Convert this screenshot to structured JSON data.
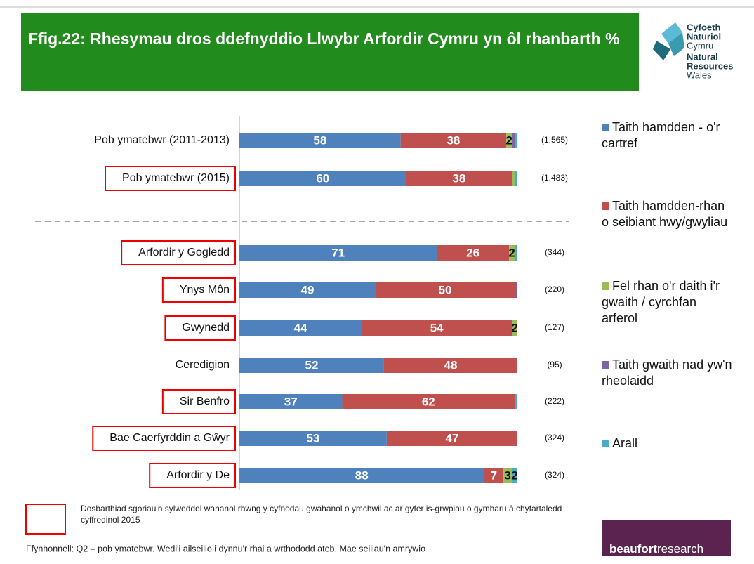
{
  "chart_data": {
    "type": "stacked_barh",
    "title": "Ffig.22: Rhesymau dros ddefnyddio Llwybr Arfordir Cymru yn ôl rhanbarth %",
    "categories": [
      "Pob ymatebwr (2011-2013)",
      "Pob ymatebwr (2015)",
      "Arfordir y Gogledd",
      "Ynys Môn",
      "Gwynedd",
      "Ceredigion",
      "Sir Benfro",
      "Bae Caerfyrddin a Gŵyr",
      "Arfordir y De"
    ],
    "highlight": [
      false,
      true,
      true,
      true,
      true,
      false,
      true,
      true,
      true
    ],
    "sample_sizes": [
      "(1,565)",
      "(1,483)",
      "(344)",
      "(220)",
      "(127)",
      "(95)",
      "(222)",
      "(324)",
      "(324)"
    ],
    "xlim": [
      0,
      100
    ],
    "series": [
      {
        "name": "Taith hamdden - o'r cartref",
        "color": "#4f81bd",
        "values": [
          58,
          60,
          71,
          49,
          44,
          52,
          37,
          53,
          88
        ]
      },
      {
        "name": "Taith hamdden-rhan o seibiant hwy/gwyliau",
        "color": "#c0504d",
        "values": [
          38,
          38,
          26,
          50,
          54,
          48,
          62,
          47,
          7
        ]
      },
      {
        "name": "Fel rhan o'r daith i'r gwaith / cyrchfan arferol",
        "color": "#9bbb59",
        "values": [
          2,
          1,
          2,
          0,
          2,
          0,
          0,
          0,
          3
        ],
        "value_labels": [
          "2",
          null,
          "2",
          null,
          "2",
          null,
          null,
          null,
          "3"
        ]
      },
      {
        "name": "Taith gwaith nad yw'n rheolaidd",
        "color": "#8064a2",
        "values": [
          1,
          0,
          0,
          1,
          0,
          0,
          0,
          0,
          0
        ],
        "value_labels": [
          null,
          null,
          null,
          null,
          null,
          null,
          null,
          null,
          null
        ]
      },
      {
        "name": "Arall",
        "color": "#4bacc6",
        "values": [
          1,
          1,
          1,
          0,
          0,
          0,
          1,
          0,
          2
        ],
        "value_labels": [
          null,
          null,
          null,
          null,
          null,
          null,
          null,
          null,
          "2"
        ]
      }
    ],
    "note": "Dosbarthiad sgoriau'n sylweddol wahanol rhwng y cyfnodau gwahanol o ymchwil ac ar gyfer is-grwpiau o gymharu â chyfartaledd cyffredinol 2015",
    "source": "Ffynhonnell: Q2 – pob ymatebwr. Wedi'i ailseilio i dynnu'r rhai a wrthododd ateb. Mae seiliau'n amrywio",
    "logo": [
      "Cyfoeth",
      "Naturiol",
      "Cymru",
      "Natural",
      "Resources",
      "Wales"
    ],
    "brand": [
      "beaufort",
      "research"
    ]
  }
}
